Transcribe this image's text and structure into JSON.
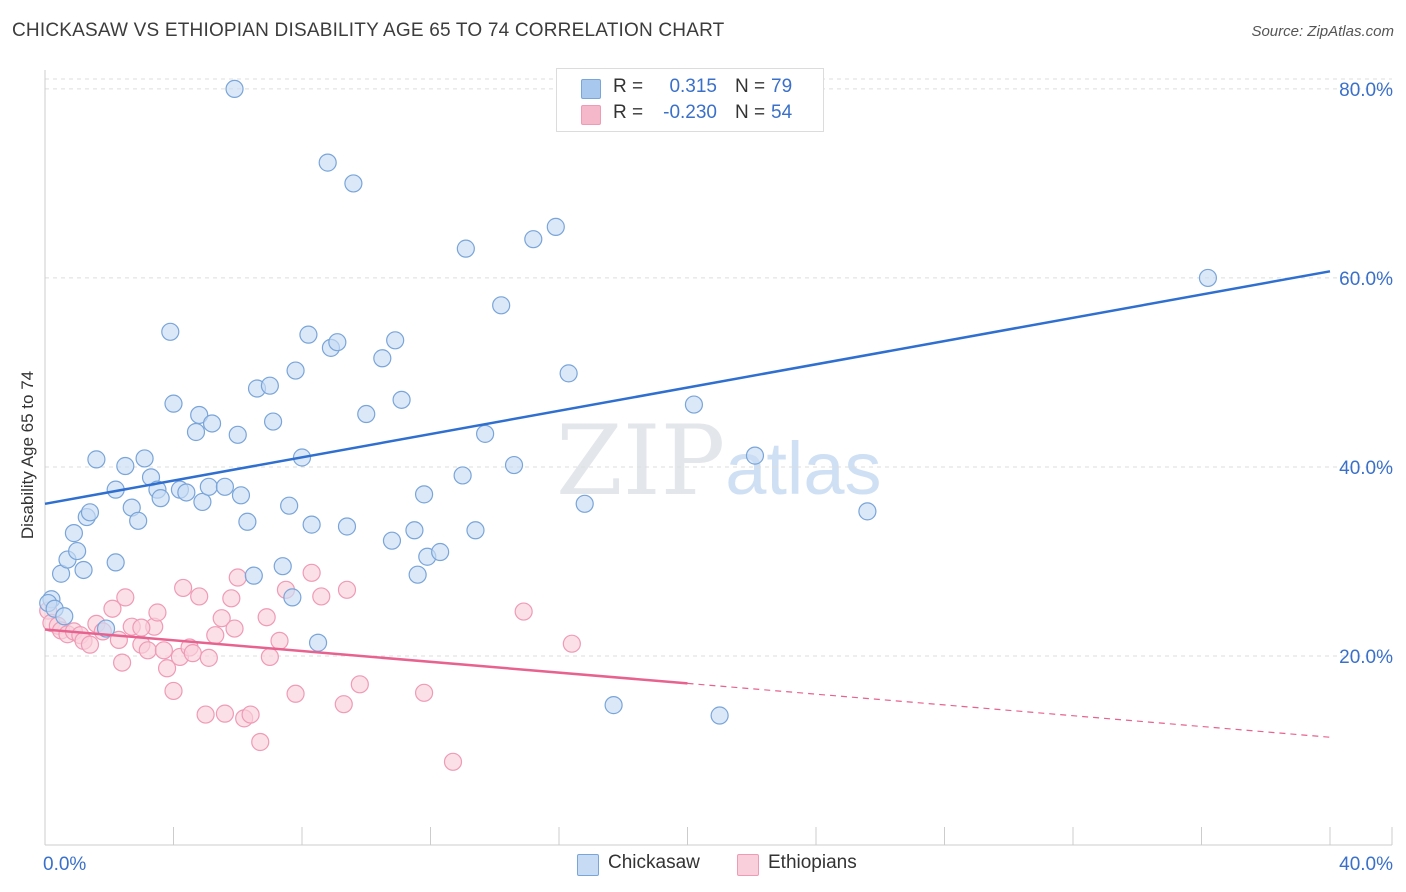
{
  "title": "CHICKASAW VS ETHIOPIAN DISABILITY AGE 65 TO 74 CORRELATION CHART",
  "source": "Source: ZipAtlas.com",
  "watermark": {
    "main": "ZIP",
    "sub": "atlas"
  },
  "legend": {
    "rows": [
      {
        "r_label": "R =",
        "r_value": "0.315",
        "n_label": "N =",
        "n_value": "79",
        "color": "#a9c8ee"
      },
      {
        "r_label": "R =",
        "r_value": "-0.230",
        "n_label": "N =",
        "n_value": "54",
        "color": "#f5b8cb"
      }
    ]
  },
  "bottom_legend": [
    "Chickasaw",
    "Ethiopians"
  ],
  "colors": {
    "chickasaw_fill": "#c7dcf4",
    "chickasaw_stroke": "#7aa5d9",
    "chickasaw_line": "#2f6fd0",
    "ethiopian_fill": "#f9cfdc",
    "ethiopian_stroke": "#ef9bb6",
    "ethiopian_line": "#e8628f",
    "tick_label": "#3a70c9",
    "grid": "#dddddd"
  },
  "chart_data": {
    "type": "scatter",
    "title": "CHICKASAW VS ETHIOPIAN DISABILITY AGE 65 TO 74 CORRELATION CHART",
    "xlabel": "",
    "ylabel": "Disability Age 65 to 74",
    "xlim": [
      0,
      40
    ],
    "ylim": [
      0,
      82
    ],
    "x_ticks": [
      "0.0%",
      "40.0%"
    ],
    "y_ticks": [
      "20.0%",
      "40.0%",
      "60.0%",
      "80.0%"
    ],
    "y_tick_values": [
      20,
      40,
      60,
      80
    ],
    "grid": true,
    "legend_position": "top-center",
    "series": [
      {
        "name": "Chickasaw",
        "r": 0.315,
        "n": 79,
        "trend": {
          "x": [
            0,
            40
          ],
          "y": [
            36.1,
            60.7
          ],
          "dashed_from": null
        },
        "points": [
          [
            0.2,
            26.0
          ],
          [
            0.5,
            28.7
          ],
          [
            0.7,
            30.2
          ],
          [
            0.9,
            33.0
          ],
          [
            1.0,
            31.1
          ],
          [
            1.2,
            29.1
          ],
          [
            1.3,
            34.7
          ],
          [
            1.4,
            35.2
          ],
          [
            1.6,
            40.8
          ],
          [
            2.2,
            29.9
          ],
          [
            2.2,
            37.6
          ],
          [
            2.5,
            40.1
          ],
          [
            2.7,
            35.7
          ],
          [
            2.9,
            34.3
          ],
          [
            3.1,
            40.9
          ],
          [
            3.3,
            38.9
          ],
          [
            3.5,
            37.6
          ],
          [
            3.6,
            36.7
          ],
          [
            3.9,
            54.3
          ],
          [
            4.0,
            46.7
          ],
          [
            4.2,
            37.6
          ],
          [
            4.4,
            37.3
          ],
          [
            4.7,
            43.7
          ],
          [
            4.8,
            45.5
          ],
          [
            4.9,
            36.3
          ],
          [
            5.1,
            37.9
          ],
          [
            5.2,
            44.6
          ],
          [
            5.6,
            37.9
          ],
          [
            6.0,
            43.4
          ],
          [
            6.1,
            37.0
          ],
          [
            6.3,
            34.2
          ],
          [
            6.5,
            28.5
          ],
          [
            6.6,
            48.3
          ],
          [
            7.0,
            48.6
          ],
          [
            7.1,
            44.8
          ],
          [
            7.4,
            29.5
          ],
          [
            7.6,
            35.9
          ],
          [
            7.7,
            26.2
          ],
          [
            7.8,
            50.2
          ],
          [
            8.0,
            41.0
          ],
          [
            8.2,
            54.0
          ],
          [
            8.3,
            33.9
          ],
          [
            8.5,
            21.4
          ],
          [
            8.8,
            72.2
          ],
          [
            8.9,
            52.6
          ],
          [
            9.1,
            53.2
          ],
          [
            9.4,
            33.7
          ],
          [
            9.6,
            70.0
          ],
          [
            10.0,
            45.6
          ],
          [
            10.5,
            51.5
          ],
          [
            10.8,
            32.2
          ],
          [
            10.9,
            53.4
          ],
          [
            11.1,
            47.1
          ],
          [
            11.5,
            33.3
          ],
          [
            11.6,
            28.6
          ],
          [
            11.8,
            37.1
          ],
          [
            11.9,
            30.5
          ],
          [
            12.3,
            31.0
          ],
          [
            13.0,
            39.1
          ],
          [
            13.1,
            63.1
          ],
          [
            13.4,
            33.3
          ],
          [
            13.7,
            43.5
          ],
          [
            14.2,
            57.1
          ],
          [
            14.6,
            40.2
          ],
          [
            15.2,
            64.1
          ],
          [
            15.9,
            65.4
          ],
          [
            16.3,
            49.9
          ],
          [
            16.8,
            36.1
          ],
          [
            17.7,
            14.8
          ],
          [
            20.2,
            46.6
          ],
          [
            21.0,
            13.7
          ],
          [
            22.1,
            41.2
          ],
          [
            25.6,
            35.3
          ],
          [
            36.2,
            60.0
          ],
          [
            5.9,
            80.0
          ],
          [
            0.1,
            25.6
          ],
          [
            0.3,
            25.0
          ],
          [
            1.9,
            22.9
          ],
          [
            0.6,
            24.2
          ]
        ]
      },
      {
        "name": "Ethiopians",
        "r": -0.23,
        "n": 54,
        "trend": {
          "x": [
            0,
            40
          ],
          "y": [
            22.8,
            11.4
          ],
          "dashed_from": 20
        },
        "points": [
          [
            0.1,
            24.8
          ],
          [
            0.2,
            23.5
          ],
          [
            0.4,
            23.2
          ],
          [
            0.5,
            22.7
          ],
          [
            0.7,
            22.3
          ],
          [
            0.9,
            22.6
          ],
          [
            1.1,
            22.2
          ],
          [
            1.2,
            21.6
          ],
          [
            1.4,
            21.2
          ],
          [
            1.6,
            23.4
          ],
          [
            1.8,
            22.6
          ],
          [
            2.1,
            25.0
          ],
          [
            2.3,
            21.7
          ],
          [
            2.4,
            19.3
          ],
          [
            2.5,
            26.2
          ],
          [
            2.7,
            23.1
          ],
          [
            3.0,
            21.2
          ],
          [
            3.2,
            20.6
          ],
          [
            3.4,
            23.1
          ],
          [
            3.5,
            24.6
          ],
          [
            3.7,
            20.6
          ],
          [
            3.8,
            18.7
          ],
          [
            4.0,
            16.3
          ],
          [
            4.2,
            19.9
          ],
          [
            4.3,
            27.2
          ],
          [
            4.5,
            20.9
          ],
          [
            4.6,
            20.3
          ],
          [
            4.8,
            26.3
          ],
          [
            5.0,
            13.8
          ],
          [
            5.1,
            19.8
          ],
          [
            5.3,
            22.2
          ],
          [
            5.5,
            24.0
          ],
          [
            5.6,
            13.9
          ],
          [
            5.8,
            26.1
          ],
          [
            6.0,
            28.3
          ],
          [
            6.2,
            13.4
          ],
          [
            6.4,
            13.8
          ],
          [
            6.7,
            10.9
          ],
          [
            6.9,
            24.1
          ],
          [
            7.0,
            19.9
          ],
          [
            7.3,
            21.6
          ],
          [
            7.5,
            27.0
          ],
          [
            7.8,
            16.0
          ],
          [
            8.3,
            28.8
          ],
          [
            8.6,
            26.3
          ],
          [
            9.3,
            14.9
          ],
          [
            9.4,
            27.0
          ],
          [
            9.8,
            17.0
          ],
          [
            11.8,
            16.1
          ],
          [
            12.7,
            8.8
          ],
          [
            14.9,
            24.7
          ],
          [
            16.4,
            21.3
          ],
          [
            3.0,
            23.0
          ],
          [
            5.9,
            22.9
          ]
        ]
      }
    ]
  }
}
